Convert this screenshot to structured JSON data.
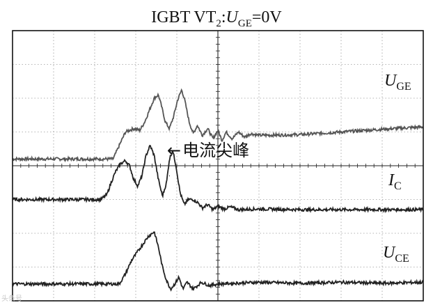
{
  "title": {
    "device": "IGBT VT",
    "device_sub": "2",
    "sep": ":",
    "var": "U",
    "var_sub": "GE",
    "value": "=0V"
  },
  "annotation": {
    "arrow": "←",
    "text": "电流尖峰"
  },
  "watermark": "头条号",
  "chart_data": {
    "type": "line",
    "title": "IGBT VT2:UGE=0V",
    "grid": true,
    "grid_divisions": {
      "x": 10,
      "y": 8
    },
    "xlabel": "",
    "ylabel": "",
    "series": [
      {
        "name": "UGE",
        "label_main": "U",
        "label_sub": "GE",
        "color": "#555555",
        "points": [
          [
            0,
            4.2
          ],
          [
            2.45,
            4.2
          ],
          [
            2.58,
            4.55
          ],
          [
            2.75,
            5.0
          ],
          [
            2.95,
            5.1
          ],
          [
            3.1,
            5.05
          ],
          [
            3.22,
            5.3
          ],
          [
            3.35,
            5.7
          ],
          [
            3.45,
            6.0
          ],
          [
            3.55,
            6.1
          ],
          [
            3.62,
            5.8
          ],
          [
            3.72,
            5.3
          ],
          [
            3.82,
            5.1
          ],
          [
            3.92,
            5.45
          ],
          [
            4.02,
            5.95
          ],
          [
            4.12,
            6.25
          ],
          [
            4.2,
            5.9
          ],
          [
            4.3,
            5.3
          ],
          [
            4.4,
            4.95
          ],
          [
            4.5,
            5.2
          ],
          [
            4.62,
            4.9
          ],
          [
            4.75,
            5.1
          ],
          [
            4.88,
            4.8
          ],
          [
            5.0,
            5.05
          ],
          [
            5.1,
            4.75
          ],
          [
            5.2,
            5.0
          ],
          [
            5.35,
            4.8
          ],
          [
            5.5,
            5.0
          ],
          [
            5.65,
            4.85
          ],
          [
            5.8,
            4.95
          ],
          [
            6.0,
            4.9
          ],
          [
            7.0,
            4.92
          ],
          [
            8.0,
            5.0
          ],
          [
            9.0,
            5.08
          ],
          [
            10.0,
            5.15
          ]
        ]
      },
      {
        "name": "IC",
        "label_main": "I",
        "label_sub": "C",
        "color": "#222222",
        "points": [
          [
            0,
            3.0
          ],
          [
            2.15,
            3.0
          ],
          [
            2.3,
            3.15
          ],
          [
            2.4,
            3.5
          ],
          [
            2.5,
            3.8
          ],
          [
            2.62,
            4.05
          ],
          [
            2.75,
            4.15
          ],
          [
            2.85,
            4.0
          ],
          [
            2.95,
            3.6
          ],
          [
            3.05,
            3.4
          ],
          [
            3.15,
            3.7
          ],
          [
            3.25,
            4.3
          ],
          [
            3.35,
            4.6
          ],
          [
            3.45,
            4.3
          ],
          [
            3.55,
            3.6
          ],
          [
            3.65,
            3.1
          ],
          [
            3.75,
            3.5
          ],
          [
            3.82,
            4.2
          ],
          [
            3.9,
            4.45
          ],
          [
            3.98,
            4.0
          ],
          [
            4.08,
            3.2
          ],
          [
            4.18,
            2.85
          ],
          [
            4.28,
            3.0
          ],
          [
            4.4,
            3.0
          ],
          [
            4.52,
            2.9
          ],
          [
            4.62,
            2.75
          ],
          [
            4.75,
            2.85
          ],
          [
            4.88,
            2.7
          ],
          [
            5.0,
            2.8
          ],
          [
            5.15,
            2.72
          ],
          [
            5.3,
            2.78
          ],
          [
            5.5,
            2.7
          ],
          [
            6.0,
            2.72
          ],
          [
            7.0,
            2.7
          ],
          [
            8.0,
            2.7
          ],
          [
            9.0,
            2.7
          ],
          [
            10.0,
            2.7
          ]
        ]
      },
      {
        "name": "UCE",
        "label_main": "U",
        "label_sub": "CE",
        "color": "#222222",
        "points": [
          [
            0,
            0.5
          ],
          [
            2.6,
            0.5
          ],
          [
            2.75,
            0.8
          ],
          [
            2.9,
            1.2
          ],
          [
            3.1,
            1.55
          ],
          [
            3.3,
            1.9
          ],
          [
            3.45,
            2.05
          ],
          [
            3.55,
            1.6
          ],
          [
            3.65,
            1.0
          ],
          [
            3.75,
            0.6
          ],
          [
            3.85,
            0.35
          ],
          [
            3.95,
            0.5
          ],
          [
            4.05,
            0.7
          ],
          [
            4.15,
            0.35
          ],
          [
            4.25,
            0.55
          ],
          [
            4.4,
            0.35
          ],
          [
            4.6,
            0.55
          ],
          [
            4.8,
            0.45
          ],
          [
            5.0,
            0.5
          ],
          [
            6.0,
            0.55
          ],
          [
            7.0,
            0.52
          ],
          [
            8.0,
            0.55
          ],
          [
            9.0,
            0.52
          ],
          [
            10.0,
            0.55
          ]
        ]
      }
    ],
    "annotation_target": {
      "x": 3.75,
      "y": 3.7
    }
  }
}
